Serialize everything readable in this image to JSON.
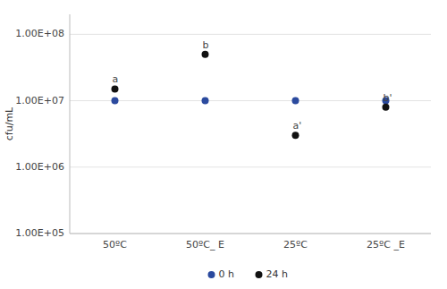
{
  "chart_data": {
    "type": "scatter",
    "categories": [
      "50ºC",
      "50ºC_ E",
      "25ºC",
      "25ºC _E"
    ],
    "series": [
      {
        "name": "0 h",
        "color": "#2b4a9e",
        "values": [
          10000000,
          10000000,
          10000000,
          10000000
        ]
      },
      {
        "name": "24 h",
        "color": "#111111",
        "values": [
          15000000,
          50000000,
          3000000,
          8000000
        ]
      }
    ],
    "y_label": "cfu/mL",
    "log": "y",
    "ylim": [
      100000,
      200000000
    ],
    "yticks": [
      {
        "value": 100000,
        "label": "1.00E+05"
      },
      {
        "value": 1000000,
        "label": "1.00E+06"
      },
      {
        "value": 10000000,
        "label": "1.00E+07"
      },
      {
        "value": 100000000,
        "label": "1.00E+08"
      }
    ],
    "annotations": [
      {
        "text": "a",
        "x": "50ºC",
        "y": 15000000
      },
      {
        "text": "b",
        "x": "50ºC_ E",
        "y": 50000000
      },
      {
        "text": "a'",
        "x": "25ºC",
        "y": 3000000
      },
      {
        "text": "b'",
        "x": "25ºC _E",
        "y": 8000000
      }
    ],
    "grid": true,
    "legend": "bottom"
  }
}
